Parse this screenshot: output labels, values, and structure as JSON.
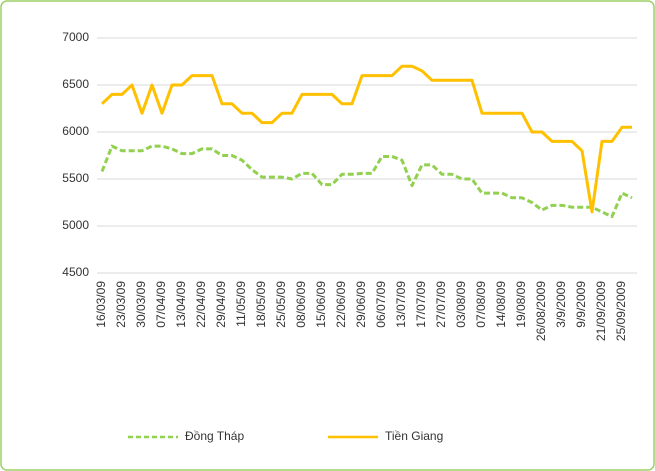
{
  "chart_data": {
    "type": "line",
    "categories": [
      "16/03/09",
      null,
      "23/03/09",
      null,
      "30/03/09",
      null,
      "07/04/09",
      null,
      "13/04/09",
      null,
      "22/04/09",
      null,
      "29/04/09",
      null,
      "11/05/09",
      null,
      "18/05/09",
      null,
      "25/05/09",
      null,
      "08/06/09",
      null,
      "15/06/09",
      null,
      "22/06/09",
      null,
      "29/06/09",
      null,
      "06/07/09",
      null,
      "13/07/09",
      null,
      "17/07/09",
      null,
      "27/07/09",
      null,
      "03/08/09",
      null,
      "07/08/09",
      null,
      "14/08/09",
      null,
      "19/08/09",
      null,
      "26/08/2009",
      null,
      "3/9/2009",
      null,
      "9/9/2009",
      null,
      "21/09/2009",
      null,
      "25/09/2009",
      null
    ],
    "series": [
      {
        "name": "Đồng Tháp",
        "color": "#92d050",
        "dashed": true,
        "values": [
          5580,
          5850,
          5800,
          5800,
          5800,
          5850,
          5850,
          5820,
          5770,
          5770,
          5820,
          5820,
          5750,
          5750,
          5700,
          5600,
          5520,
          5520,
          5520,
          5500,
          5560,
          5560,
          5440,
          5440,
          5550,
          5550,
          5560,
          5560,
          5740,
          5740,
          5700,
          5430,
          5650,
          5650,
          5550,
          5550,
          5500,
          5500,
          5350,
          5350,
          5350,
          5300,
          5300,
          5250,
          5170,
          5220,
          5220,
          5200,
          5200,
          5200,
          5150,
          5100,
          5350,
          5300
        ]
      },
      {
        "name": "Tiền Giang",
        "color": "#ffc000",
        "dashed": false,
        "values": [
          6300,
          6400,
          6400,
          6500,
          6200,
          6500,
          6200,
          6500,
          6500,
          6600,
          6600,
          6600,
          6300,
          6300,
          6200,
          6200,
          6100,
          6100,
          6200,
          6200,
          6400,
          6400,
          6400,
          6400,
          6300,
          6300,
          6600,
          6600,
          6600,
          6600,
          6700,
          6700,
          6650,
          6550,
          6550,
          6550,
          6550,
          6550,
          6200,
          6200,
          6200,
          6200,
          6200,
          6000,
          6000,
          5900,
          5900,
          5900,
          5800,
          5150,
          5900,
          5900,
          6050,
          6050
        ]
      }
    ],
    "ylim": [
      4500,
      7000
    ],
    "yticks": [
      4500,
      5000,
      5500,
      6000,
      6500,
      7000
    ],
    "grid": true,
    "legend": "bottom"
  }
}
